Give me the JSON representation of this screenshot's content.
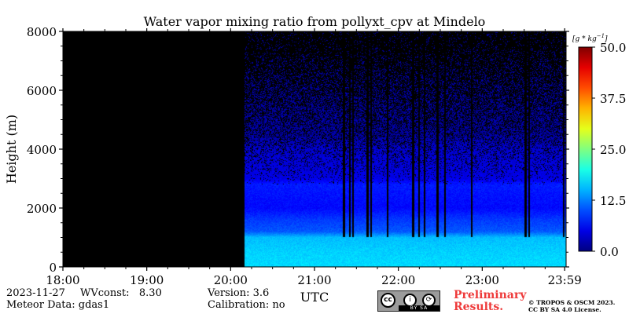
{
  "chart_data": {
    "type": "heatmap",
    "title": "Water vapor mixing ratio from pollyxt_cpv at Mindelo",
    "xlabel": "UTC",
    "ylabel": "Height (m)",
    "xlim": [
      "18:00",
      "23:59"
    ],
    "ylim": [
      0,
      8000
    ],
    "x_ticks": [
      "18:00",
      "19:00",
      "20:00",
      "21:00",
      "22:00",
      "23:00",
      "23:59"
    ],
    "x_tick_hours": [
      18,
      19,
      20,
      21,
      22,
      23,
      23.983
    ],
    "y_ticks": [
      0,
      2000,
      4000,
      6000,
      8000
    ],
    "colorbar": {
      "unit": "[g * kg^-1]",
      "ticks": [
        "0.0",
        "12.5",
        "25.0",
        "37.5",
        "50.0"
      ],
      "tick_values": [
        0,
        12.5,
        25,
        37.5,
        50
      ],
      "range": [
        0,
        50
      ],
      "colormap": "jet"
    },
    "no_data_before": "20:10",
    "no_data_color": "#000000",
    "profile": [
      {
        "height": 0,
        "value": 17
      },
      {
        "height": 500,
        "value": 16.5
      },
      {
        "height": 1000,
        "value": 15.5
      },
      {
        "height": 1200,
        "value": 10.5
      },
      {
        "height": 1600,
        "value": 9
      },
      {
        "height": 2000,
        "value": 6.5
      },
      {
        "height": 2800,
        "value": 7.5
      },
      {
        "height": 3000,
        "value": 5
      },
      {
        "height": 4000,
        "value": 4
      },
      {
        "height": 4500,
        "value": 2
      },
      {
        "height": 6000,
        "value": 2
      },
      {
        "height": 8000,
        "value": 1.5
      }
    ],
    "gaps_utc": [
      "21:20",
      "21:25",
      "21:27",
      "21:37",
      "21:40",
      "21:52",
      "22:10",
      "22:14",
      "22:18",
      "22:27",
      "22:33",
      "22:52",
      "23:30",
      "23:33",
      "23:58"
    ]
  },
  "info": {
    "date": "2023-11-27",
    "wvconst": "WVconst:   8.30",
    "version": "Version: 3.6",
    "meteor": "Meteor Data: gdas1",
    "calibration": "Calibration: no"
  },
  "license": {
    "cc": "cc",
    "by": "i",
    "sa": "⟳",
    "strip": "BY   SA"
  },
  "preliminary": "Preliminary\nResults.",
  "copyright": "© TROPOS & OSCM 2023.\nCC BY SA 4.0 License."
}
